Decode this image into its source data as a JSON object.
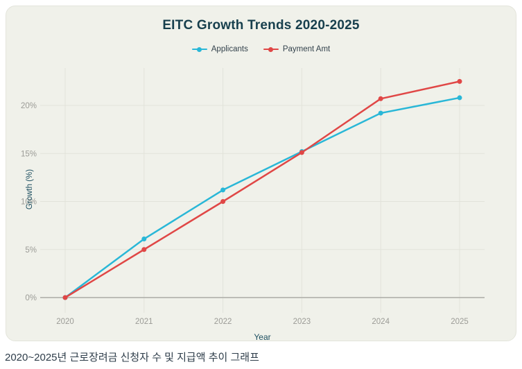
{
  "page": {
    "caption": "2020~2025년 근로장려금 신청자 수 및 지급액 추이 그래프"
  },
  "colors": {
    "card_background": "#f0f1ea",
    "card_border": "#e3e4db",
    "title_text": "#173f4d",
    "axis_title_text": "#1d4f60",
    "tick_label_text": "#9b9b96",
    "gridline": "#e2e3da",
    "zero_line": "#b4b4af",
    "applicants_line": "#29b7d7",
    "payment_line": "#e04746"
  },
  "chart_data": {
    "type": "line",
    "title": "EITC Growth Trends 2020-2025",
    "x": [
      2020,
      2021,
      2022,
      2023,
      2024,
      2025
    ],
    "series": [
      {
        "name": "Applicants",
        "color": "#29b7d7",
        "values": [
          0,
          6.1,
          11.2,
          15.2,
          19.2,
          20.8
        ]
      },
      {
        "name": "Payment Amt",
        "color": "#e04746",
        "values": [
          0,
          5.0,
          10.0,
          15.1,
          20.7,
          22.5
        ]
      }
    ],
    "xlabel": "Year",
    "ylabel": "Growth (%)",
    "yticks": [
      0,
      5,
      10,
      15,
      20
    ],
    "ytick_labels": [
      "0%",
      "5%",
      "10%",
      "15%",
      "20%"
    ],
    "xtick_labels": [
      "2020",
      "2021",
      "2022",
      "2023",
      "2024",
      "2025"
    ],
    "ylim": [
      -1.4,
      23.9
    ],
    "grid": true,
    "legend_position": "top-center"
  }
}
